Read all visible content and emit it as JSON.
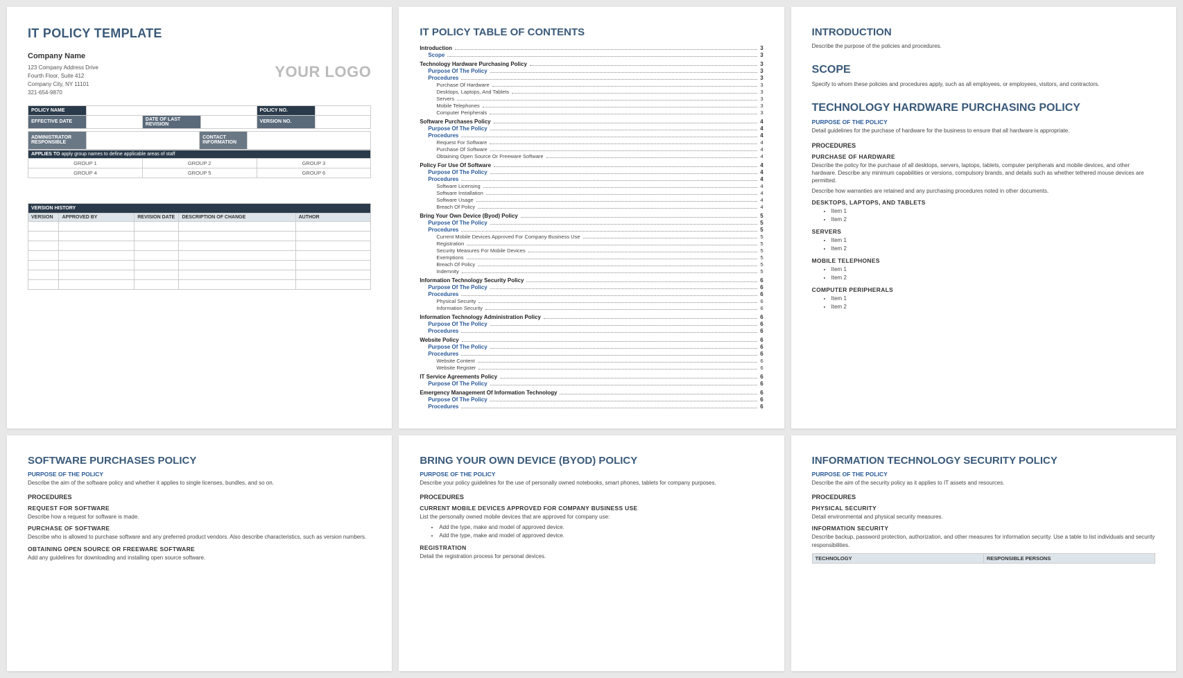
{
  "page1": {
    "title": "IT POLICY TEMPLATE",
    "company_name": "Company Name",
    "addr1": "123 Company Address Drive",
    "addr2": "Fourth Floor, Suite 412",
    "addr3": "Company City, NY  11101",
    "phone": "321-654-9870",
    "logo": "YOUR LOGO",
    "meta": {
      "policy_name_lbl": "POLICY NAME",
      "policy_no_lbl": "POLICY NO.",
      "eff_date_lbl": "EFFECTIVE DATE",
      "last_rev_lbl": "DATE OF LAST REVISION",
      "ver_no_lbl": "VERSION NO.",
      "admin_lbl": "ADMINISTRATOR RESPONSIBLE",
      "contact_lbl": "CONTACT INFORMATION",
      "applies_prefix": "APPLIES TO",
      "applies_rest": " apply group names to define applicable areas of staff",
      "g1": "GROUP 1",
      "g2": "GROUP 2",
      "g3": "GROUP 3",
      "g4": "GROUP 4",
      "g5": "GROUP 5",
      "g6": "GROUP 6"
    },
    "vh": {
      "header": "VERSION HISTORY",
      "c1": "VERSION",
      "c2": "APPROVED BY",
      "c3": "REVISION DATE",
      "c4": "DESCRIPTION OF CHANGE",
      "c5": "AUTHOR"
    }
  },
  "page2": {
    "title": "IT POLICY TABLE OF CONTENTS",
    "entries": [
      {
        "l": 1,
        "t": "Introduction",
        "p": "3"
      },
      {
        "l": 2,
        "t": "Scope",
        "p": "3"
      },
      {
        "l": 1,
        "t": "Technology Hardware Purchasing Policy",
        "p": "3"
      },
      {
        "l": 2,
        "t": "Purpose Of The Policy",
        "p": "3"
      },
      {
        "l": 2,
        "t": "Procedures",
        "p": "3"
      },
      {
        "l": 3,
        "t": "Purchase Of Hardware",
        "p": "3"
      },
      {
        "l": 3,
        "t": "Desktops, Laptops, And Tablets",
        "p": "3"
      },
      {
        "l": 3,
        "t": "Servers",
        "p": "3"
      },
      {
        "l": 3,
        "t": "Mobile Telephones",
        "p": "3"
      },
      {
        "l": 3,
        "t": "Computer Peripherals",
        "p": "3"
      },
      {
        "l": 1,
        "t": "Software Purchases Policy",
        "p": "4"
      },
      {
        "l": 2,
        "t": "Purpose Of The Policy",
        "p": "4"
      },
      {
        "l": 2,
        "t": "Procedures",
        "p": "4"
      },
      {
        "l": 3,
        "t": "Request For Software",
        "p": "4"
      },
      {
        "l": 3,
        "t": "Purchase Of Software",
        "p": "4"
      },
      {
        "l": 3,
        "t": "Obtaining Open Source Or Freeware Software",
        "p": "4"
      },
      {
        "l": 1,
        "t": "Policy For Use Of Software",
        "p": "4"
      },
      {
        "l": 2,
        "t": "Purpose Of The Policy",
        "p": "4"
      },
      {
        "l": 2,
        "t": "Procedures",
        "p": "4"
      },
      {
        "l": 3,
        "t": "Software Licensing",
        "p": "4"
      },
      {
        "l": 3,
        "t": "Software Installation",
        "p": "4"
      },
      {
        "l": 3,
        "t": "Software Usage",
        "p": "4"
      },
      {
        "l": 3,
        "t": "Breach Of Policy",
        "p": "4"
      },
      {
        "l": 1,
        "t": "Bring Your Own Device (Byod) Policy",
        "p": "5"
      },
      {
        "l": 2,
        "t": "Purpose Of The Policy",
        "p": "5"
      },
      {
        "l": 2,
        "t": "Procedures",
        "p": "5"
      },
      {
        "l": 3,
        "t": "Current Mobile Devices Approved For Company Business Use",
        "p": "5"
      },
      {
        "l": 3,
        "t": "Registration",
        "p": "5"
      },
      {
        "l": 3,
        "t": "Security Measures For Mobile Devices",
        "p": "5"
      },
      {
        "l": 3,
        "t": "Exemptions",
        "p": "5"
      },
      {
        "l": 3,
        "t": "Breach Of Policy",
        "p": "5"
      },
      {
        "l": 3,
        "t": "Indemnity",
        "p": "5"
      },
      {
        "l": 1,
        "t": "Information Technology Security Policy",
        "p": "6"
      },
      {
        "l": 2,
        "t": "Purpose Of The Policy",
        "p": "6"
      },
      {
        "l": 2,
        "t": "Procedures",
        "p": "6"
      },
      {
        "l": 3,
        "t": "Physical Security",
        "p": "6"
      },
      {
        "l": 3,
        "t": "Information Security",
        "p": "6"
      },
      {
        "l": 1,
        "t": "Information Technology Administration Policy",
        "p": "6"
      },
      {
        "l": 2,
        "t": "Purpose Of The Policy",
        "p": "6"
      },
      {
        "l": 2,
        "t": "Procedures",
        "p": "6"
      },
      {
        "l": 1,
        "t": "Website Policy",
        "p": "6"
      },
      {
        "l": 2,
        "t": "Purpose Of The Policy",
        "p": "6"
      },
      {
        "l": 2,
        "t": "Procedures",
        "p": "6"
      },
      {
        "l": 3,
        "t": "Website Content",
        "p": "6"
      },
      {
        "l": 3,
        "t": "Website Register",
        "p": "6"
      },
      {
        "l": 1,
        "t": "IT Service Agreements Policy",
        "p": "6"
      },
      {
        "l": 2,
        "t": "Purpose Of The Policy",
        "p": "6"
      },
      {
        "l": 1,
        "t": "Emergency Management Of Information Technology",
        "p": "6"
      },
      {
        "l": 2,
        "t": "Purpose Of The Policy",
        "p": "6"
      },
      {
        "l": 2,
        "t": "Procedures",
        "p": "6"
      }
    ]
  },
  "page3": {
    "intro_h": "INTRODUCTION",
    "intro_p": "Describe the purpose of the policies and procedures.",
    "scope_h": "SCOPE",
    "scope_p": "Specify to whom these policies and procedures apply, such as all employees, or employees, visitors, and contractors.",
    "thpp_h": "TECHNOLOGY HARDWARE PURCHASING POLICY",
    "purpose_h": "PURPOSE OF THE POLICY",
    "purpose_p": "Detail guidelines for the purchase of hardware for the business to ensure that all hardware is appropriate.",
    "proc_h": "PROCEDURES",
    "poh_h": "PURCHASE OF HARDWARE",
    "poh_p1": "Describe the policy for the purchase of all desktops, servers, laptops, tablets, computer peripherals and mobile devices, and other hardware. Describe any minimum capabilities or versions, compulsory brands, and details such as whether tethered mouse devices are permitted.",
    "poh_p2": "Describe how warranties are retained and any purchasing procedures noted in other documents.",
    "dlt_h": "DESKTOPS, LAPTOPS, AND TABLETS",
    "srv_h": "SERVERS",
    "mob_h": "MOBILE TELEPHONES",
    "cp_h": "COMPUTER PERIPHERALS",
    "item1": "Item 1",
    "item2": "Item 2"
  },
  "page4": {
    "title": "SOFTWARE PURCHASES POLICY",
    "purpose_h": "PURPOSE OF THE POLICY",
    "purpose_p": "Describe the aim of the software policy and whether it applies to single licenses, bundles, and so on.",
    "proc_h": "PROCEDURES",
    "rfs_h": "REQUEST FOR SOFTWARE",
    "rfs_p": "Describe how a request for software is made.",
    "pos_h": "PURCHASE OF SOFTWARE",
    "pos_p": "Describe who is allowed to purchase software and any preferred product vendors. Also describe characteristics, such as version numbers.",
    "oos_h": "OBTAINING OPEN SOURCE OR FREEWARE SOFTWARE",
    "oos_p": "Add any guidelines for downloading and installing open source software."
  },
  "page5": {
    "title": "BRING YOUR OWN DEVICE (BYOD) POLICY",
    "purpose_h": "PURPOSE OF THE POLICY",
    "purpose_p": "Describe your policy guidelines for the use of personally owned notebooks, smart phones, tablets for company purposes.",
    "proc_h": "PROCEDURES",
    "cmd_h": "CURRENT MOBILE DEVICES APPROVED FOR COMPANY BUSINESS USE",
    "cmd_p": "List the personally owned mobile devices that are approved for company use:",
    "li1": "Add the type, make and model of approved device.",
    "li2": "Add the type, make and model of approved device.",
    "reg_h": "REGISTRATION",
    "reg_p": "Detail the registration process for personal devices."
  },
  "page6": {
    "title": "INFORMATION TECHNOLOGY SECURITY POLICY",
    "purpose_h": "PURPOSE OF THE POLICY",
    "purpose_p": "Describe the aim of the security policy as it applies to IT assets and resources.",
    "proc_h": "PROCEDURES",
    "phys_h": "PHYSICAL SECURITY",
    "phys_p": "Detail environmental and physical security measures.",
    "info_h": "INFORMATION SECURITY",
    "info_p": "Describe backup, password protection, authorization, and other measures for information security. Use a table to list individuals and security responsibilities.",
    "tbl_c1": "TECHNOLOGY",
    "tbl_c2": "RESPONSIBLE PERSONS"
  }
}
